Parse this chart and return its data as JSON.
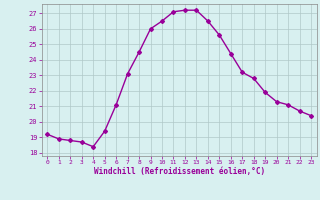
{
  "x": [
    0,
    1,
    2,
    3,
    4,
    5,
    6,
    7,
    8,
    9,
    10,
    11,
    12,
    13,
    14,
    15,
    16,
    17,
    18,
    19,
    20,
    21,
    22,
    23
  ],
  "y": [
    19.2,
    18.9,
    18.8,
    18.7,
    18.4,
    19.4,
    21.1,
    23.1,
    24.5,
    26.0,
    26.5,
    27.1,
    27.2,
    27.2,
    26.5,
    25.6,
    24.4,
    23.2,
    22.8,
    21.9,
    21.3,
    21.1,
    20.7,
    20.4
  ],
  "line_color": "#990099",
  "marker": "D",
  "marker_size": 2.0,
  "line_width": 1.0,
  "bg_color": "#d8f0f0",
  "grid_color": "#b0c8c8",
  "xlabel": "Windchill (Refroidissement éolien,°C)",
  "xlabel_color": "#990099",
  "xlim": [
    -0.5,
    23.5
  ],
  "ylim": [
    17.8,
    27.6
  ],
  "yticks": [
    18,
    19,
    20,
    21,
    22,
    23,
    24,
    25,
    26,
    27
  ],
  "xticks": [
    0,
    1,
    2,
    3,
    4,
    5,
    6,
    7,
    8,
    9,
    10,
    11,
    12,
    13,
    14,
    15,
    16,
    17,
    18,
    19,
    20,
    21,
    22,
    23
  ]
}
